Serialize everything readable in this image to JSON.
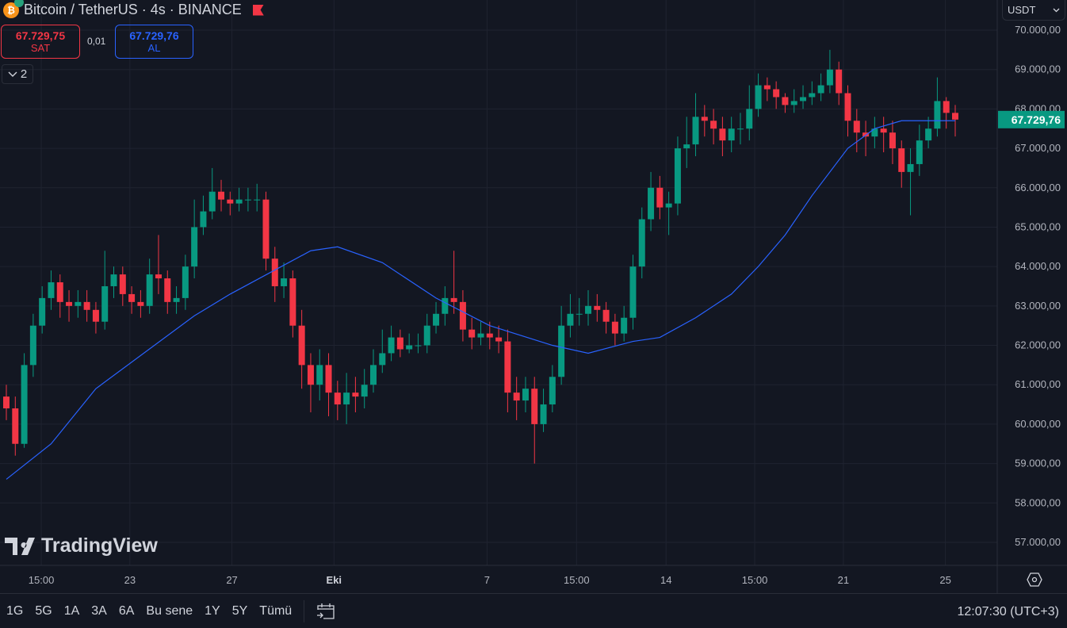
{
  "header": {
    "symbol": "Bitcoin / TetherUS · 4s · BINANCE",
    "sell_price": "67.729,75",
    "sell_label": "SAT",
    "spread": "0,01",
    "buy_price": "67.729,76",
    "buy_label": "AL",
    "indicator_count": "2",
    "currency": "USDT",
    "logo": "TradingView"
  },
  "toolbar": {
    "ranges": [
      "1G",
      "5G",
      "1A",
      "3A",
      "6A",
      "Bu sene",
      "1Y",
      "5Y",
      "Tümü"
    ],
    "clock": "12:07:30 (UTC+3)",
    "icons": [
      "calendar-goto-icon",
      "settings-icon"
    ]
  },
  "colors": {
    "up": "#089981",
    "down": "#f23645",
    "ma": "#2962ff",
    "background": "#131722",
    "grid": "#1f2330"
  },
  "chart_data": {
    "type": "candlestick",
    "ylim": [
      56500,
      70500
    ],
    "grid": true,
    "last_price": 67729.76,
    "last_price_label": "67.729,76",
    "yticks": [
      {
        "v": 70000,
        "l": "70.000,00"
      },
      {
        "v": 69000,
        "l": "69.000,00"
      },
      {
        "v": 68000,
        "l": "68.000,00"
      },
      {
        "v": 67000,
        "l": "67.000,00"
      },
      {
        "v": 66000,
        "l": "66.000,00"
      },
      {
        "v": 65000,
        "l": "65.000,00"
      },
      {
        "v": 64000,
        "l": "64.000,00"
      },
      {
        "v": 63000,
        "l": "63.000,00"
      },
      {
        "v": 62000,
        "l": "62.000,00"
      },
      {
        "v": 61000,
        "l": "61.000,00"
      },
      {
        "v": 60000,
        "l": "60.000,00"
      },
      {
        "v": 59000,
        "l": "59.000,00"
      },
      {
        "v": 58000,
        "l": "58.000,00"
      },
      {
        "v": 57000,
        "l": "57.000,00"
      }
    ],
    "xticks": [
      {
        "i": 3.9,
        "l": "15:00"
      },
      {
        "i": 13.8,
        "l": "23"
      },
      {
        "i": 25.2,
        "l": "27"
      },
      {
        "i": 36.6,
        "l": "Eki",
        "bold": true
      },
      {
        "i": 53.7,
        "l": "7"
      },
      {
        "i": 63.7,
        "l": "15:00"
      },
      {
        "i": 73.7,
        "l": "14"
      },
      {
        "i": 83.6,
        "l": "15:00"
      },
      {
        "i": 93.5,
        "l": "21"
      },
      {
        "i": 104.9,
        "l": "25"
      }
    ],
    "first_open": 60700,
    "close": [
      60400,
      59500,
      61500,
      62500,
      63200,
      63600,
      63100,
      63000,
      63100,
      62900,
      62600,
      63500,
      63800,
      63300,
      63100,
      63000,
      63800,
      63700,
      63100,
      63200,
      64000,
      65000,
      65400,
      65900,
      65700,
      65600,
      65700,
      65700,
      65700,
      64200,
      63500,
      63700,
      62500,
      61500,
      61000,
      61500,
      60800,
      60500,
      60800,
      60700,
      61000,
      61500,
      61800,
      62200,
      61900,
      62000,
      62000,
      62500,
      62800,
      63200,
      63100,
      62400,
      62200,
      62300,
      62200,
      62100,
      60800,
      60600,
      60900,
      60000,
      60500,
      61200,
      62500,
      62800,
      62800,
      63000,
      62900,
      62600,
      62300,
      62700,
      64000,
      65200,
      66000,
      65500,
      65600,
      67000,
      67100,
      67800,
      67700,
      67500,
      67200,
      67500,
      67500,
      68000,
      68600,
      68500,
      68300,
      68100,
      68200,
      68300,
      68400,
      68600,
      69000,
      68400,
      67700,
      67400,
      67300,
      67500,
      67400,
      67000,
      66400,
      66600,
      67200,
      67500,
      68200,
      67900,
      67730
    ],
    "high": [
      61000,
      60700,
      61800,
      62800,
      63500,
      63900,
      63800,
      63400,
      63400,
      63400,
      63100,
      64400,
      64000,
      64000,
      63500,
      63400,
      64200,
      64800,
      63900,
      63500,
      64300,
      65700,
      65800,
      66500,
      66200,
      65900,
      66000,
      66000,
      66100,
      65900,
      64500,
      64100,
      63900,
      62900,
      61800,
      61900,
      61800,
      61100,
      61300,
      61200,
      61400,
      61900,
      62400,
      62500,
      62400,
      62300,
      62300,
      62800,
      63100,
      63500,
      64400,
      63400,
      62700,
      62600,
      62600,
      62500,
      62400,
      61200,
      61200,
      61200,
      60900,
      61500,
      63000,
      63300,
      63200,
      63400,
      63300,
      63100,
      62800,
      63000,
      64300,
      65500,
      66400,
      66300,
      65900,
      67300,
      67800,
      68400,
      68100,
      68000,
      67800,
      67800,
      67900,
      68600,
      68900,
      68800,
      68700,
      68400,
      68500,
      68600,
      68700,
      68900,
      69500,
      69200,
      68600,
      68000,
      67700,
      67800,
      67800,
      67700,
      67200,
      67000,
      67600,
      67800,
      68800,
      68300,
      68100
    ],
    "low": [
      60100,
      59200,
      59400,
      61200,
      62300,
      62900,
      62700,
      62600,
      62700,
      62600,
      62300,
      62400,
      63200,
      63000,
      62800,
      62700,
      62800,
      63300,
      62800,
      62800,
      62900,
      63700,
      64800,
      65200,
      65400,
      65300,
      65400,
      65400,
      65400,
      63900,
      63100,
      63200,
      62200,
      60900,
      60300,
      60600,
      60200,
      60100,
      60000,
      60300,
      60400,
      60800,
      61300,
      61600,
      61700,
      61800,
      61800,
      61800,
      62300,
      62500,
      62800,
      62100,
      61900,
      62000,
      61900,
      61800,
      60300,
      60100,
      60300,
      59000,
      59800,
      60300,
      61000,
      62200,
      62500,
      62500,
      62600,
      62300,
      62000,
      62100,
      62400,
      63700,
      64900,
      65200,
      64800,
      65300,
      66500,
      66800,
      67300,
      67100,
      66800,
      66900,
      67100,
      67200,
      67800,
      68200,
      68000,
      67900,
      67900,
      68000,
      68100,
      68200,
      68400,
      68100,
      67300,
      66900,
      66800,
      67000,
      66900,
      66600,
      66000,
      65300,
      66300,
      67000,
      67300,
      67500,
      67300
    ],
    "moving_average": [
      [
        0,
        58600
      ],
      [
        5,
        59500
      ],
      [
        10,
        60900
      ],
      [
        21,
        62750
      ],
      [
        25,
        63300
      ],
      [
        34,
        64400
      ],
      [
        37,
        64500
      ],
      [
        42,
        64100
      ],
      [
        48,
        63200
      ],
      [
        54,
        62500
      ],
      [
        61,
        62000
      ],
      [
        65,
        61800
      ],
      [
        70,
        62100
      ],
      [
        73,
        62200
      ],
      [
        77,
        62700
      ],
      [
        81,
        63300
      ],
      [
        84,
        64000
      ],
      [
        87,
        64800
      ],
      [
        90,
        65800
      ],
      [
        94,
        67000
      ],
      [
        97,
        67500
      ],
      [
        100,
        67700
      ],
      [
        106,
        67700
      ]
    ]
  }
}
